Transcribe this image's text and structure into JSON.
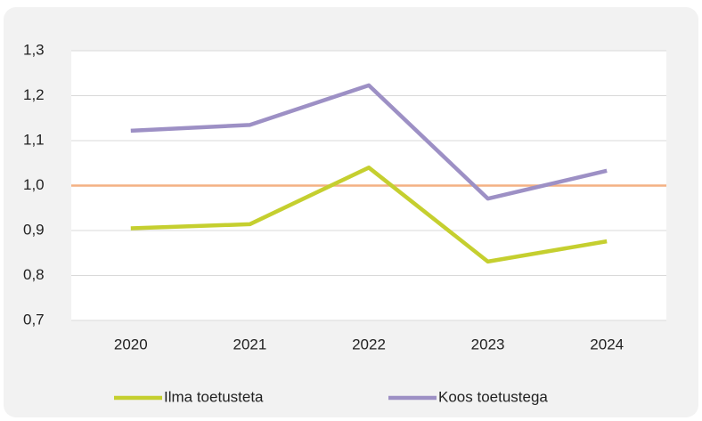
{
  "chart_data": {
    "type": "line",
    "categories": [
      "2020",
      "2021",
      "2022",
      "2023",
      "2024"
    ],
    "series": [
      {
        "name": "Ilma toetusteta",
        "color": "#c5cf2f",
        "values": [
          0.905,
          0.914,
          1.04,
          0.831,
          0.876
        ]
      },
      {
        "name": "Koos toetustega",
        "color": "#9d90c5",
        "values": [
          1.122,
          1.135,
          1.223,
          0.971,
          1.033
        ]
      }
    ],
    "ylim": [
      0.7,
      1.3
    ],
    "yticks": [
      {
        "value": 0.7,
        "label": "0,7"
      },
      {
        "value": 0.8,
        "label": "0,8"
      },
      {
        "value": 0.9,
        "label": "0,9"
      },
      {
        "value": 1.0,
        "label": "1,0"
      },
      {
        "value": 1.1,
        "label": "1,1"
      },
      {
        "value": 1.2,
        "label": "1,2"
      },
      {
        "value": 1.3,
        "label": "1,3"
      }
    ],
    "grid": true,
    "reference_line": {
      "value": 1.0,
      "color": "#f4b183"
    },
    "legend": "bottom"
  }
}
